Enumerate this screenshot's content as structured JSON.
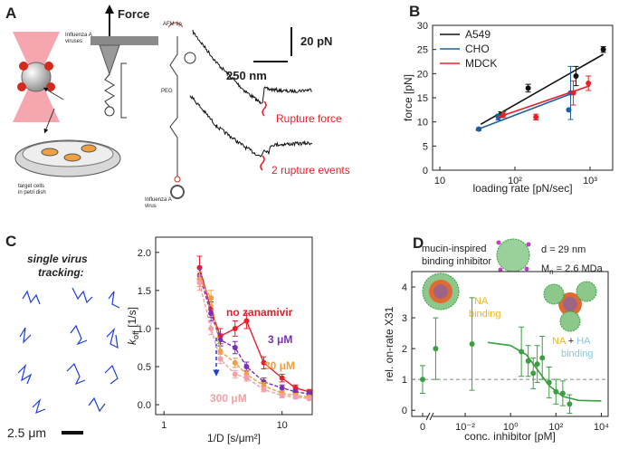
{
  "panels": {
    "A": {
      "letter": "A",
      "force": "Force",
      "afm_tip": "AFM tip",
      "viruses": [
        "Influenza A",
        "viruses"
      ],
      "cells": [
        "target cells",
        "in petri dish"
      ],
      "virus": [
        "Influenza A",
        "virus"
      ],
      "peg": "PEG",
      "force_scale": "20 pN",
      "distance_scale": "250 nm",
      "rupture_force": "Rupture force",
      "rupture_events": "2 rupture events"
    },
    "B": {
      "letter": "B"
    },
    "C": {
      "letter": "C",
      "tracking": [
        "single virus",
        "tracking:"
      ],
      "scale_bar": "2.5 μm"
    },
    "D": {
      "letter": "D",
      "inhibitor": [
        "mucin-inspired",
        "binding inhibitor"
      ],
      "diameter": "d = 29 nm",
      "mass": {
        "symbol": "M",
        "subscript": "n",
        "text": " = 2.6 MDa"
      },
      "na_binding": [
        "NA",
        "binding"
      ],
      "na_ha_binding": {
        "na": "NA",
        "plus": "+",
        "ha": "HA",
        "binding": "binding"
      }
    }
  },
  "chart_data": [
    {
      "type": "scatter",
      "x_label": "loading rate [pN/sec]",
      "y_label": "force [pN]",
      "xlog": true,
      "xlim": [
        8,
        2000
      ],
      "xticks": [
        10,
        {
          "value": 100,
          "label": "10²"
        },
        {
          "value": 1000,
          "label": "10³"
        }
      ],
      "ylim": [
        0,
        30
      ],
      "yticks": [
        0,
        5,
        10,
        15,
        20,
        25,
        30
      ],
      "legend": "upper left",
      "series": [
        {
          "name": "A549",
          "color": "#111111",
          "x": [
            65,
            150,
            650,
            1500
          ],
          "values": [
            11.5,
            17,
            19.5,
            25
          ],
          "errors": [
            0.6,
            0.8,
            2,
            0.6
          ],
          "fit": {
            "x": [
              35,
              1500
            ],
            "values": [
              9.5,
              24
            ]
          }
        },
        {
          "name": "CHO",
          "color": "#1f5fa0",
          "x": [
            33,
            60,
            550,
            520
          ],
          "values": [
            8.5,
            11,
            16,
            12.5
          ],
          "errors": [
            0.3,
            0.6,
            5.5,
            0
          ],
          "fit": {
            "x": [
              30,
              600
            ],
            "values": [
              8.3,
              16
            ]
          }
        },
        {
          "name": "MDCK",
          "color": "#e8202a",
          "x": [
            70,
            190,
            600,
            950
          ],
          "values": [
            11.5,
            11,
            16,
            18
          ],
          "errors": [
            0.6,
            0.6,
            2.5,
            1.5
          ],
          "fit": {
            "x": [
              60,
              1000
            ],
            "values": [
              11,
              17.5
            ]
          }
        }
      ]
    },
    {
      "type": "line",
      "x_label": "1/D [s/μm²]",
      "y_label": {
        "symbol": "k",
        "subscript": "off",
        "text": " [1/s]"
      },
      "xlog": true,
      "xlim": [
        0.85,
        18
      ],
      "xticks": [
        1,
        10
      ],
      "ylim": [
        -0.13,
        2.2
      ],
      "yticks": [
        {
          "value": 0,
          "label": "0.0"
        },
        0.5,
        {
          "value": 1,
          "label": "1.0"
        },
        1.5,
        {
          "value": 2,
          "label": "2.0"
        }
      ],
      "series": [
        {
          "name": "no zanamivir",
          "color": "#e8202a",
          "dashed": false,
          "x": [
            2,
            2.5,
            3,
            4,
            5,
            7,
            10,
            13,
            17
          ],
          "values": [
            1.8,
            1.25,
            0.9,
            1.0,
            1.1,
            0.55,
            0.35,
            0.22,
            0.17
          ],
          "errors": [
            0.15,
            0.1,
            0.1,
            0.1,
            0.1,
            0.08,
            0.05,
            0.04,
            0.03
          ]
        },
        {
          "name": "3 μM",
          "color": "#7b2fbe",
          "dashed": true,
          "x": [
            2,
            2.5,
            3,
            4,
            5,
            7,
            10,
            13,
            17
          ],
          "values": [
            1.7,
            1.2,
            0.85,
            0.75,
            0.5,
            0.3,
            0.22,
            0.17,
            0.14
          ],
          "errors": [
            0.1,
            0.1,
            0.08,
            0.08,
            0.06,
            0.05,
            0.04,
            0.03,
            0.03
          ]
        },
        {
          "name": "30 μM",
          "color": "#f0a040",
          "dashed": true,
          "x": [
            2,
            2.5,
            3,
            4,
            5,
            7,
            10,
            13,
            17
          ],
          "values": [
            1.65,
            1.4,
            0.7,
            0.55,
            0.4,
            0.25,
            0.15,
            0.12,
            0.1
          ],
          "errors": [
            0.1,
            0.1,
            0.08,
            0.06,
            0.05,
            0.04,
            0.03,
            0.03,
            0.02
          ]
        },
        {
          "name": "300 μM",
          "color": "#f4a0a8",
          "dashed": true,
          "x": [
            2,
            2.5,
            3,
            4,
            5,
            7,
            10,
            13,
            17
          ],
          "values": [
            1.6,
            1.0,
            0.6,
            0.4,
            0.35,
            0.2,
            0.12,
            0.1,
            0.08
          ],
          "errors": [
            0.1,
            0.08,
            0.06,
            0.05,
            0.04,
            0.03,
            0.03,
            0.02,
            0.02
          ]
        }
      ]
    },
    {
      "type": "scatter",
      "x_label": "conc. inhibitor [pM]",
      "y_label": "rel. on-rate X31",
      "xlog": true,
      "axis_break": true,
      "xlim": [
        0.0004,
        20000
      ],
      "xticks": [
        0,
        {
          "value": 0.01,
          "label": "10⁻²"
        },
        {
          "value": 1,
          "label": "10⁰"
        },
        {
          "value": 100,
          "label": "10²"
        },
        {
          "value": 10000,
          "label": "10⁴"
        }
      ],
      "ylim": [
        -0.2,
        4.5
      ],
      "yticks": [
        0,
        1,
        2,
        3,
        4
      ],
      "reference": 1,
      "series": [
        {
          "color": "#3aa040",
          "x": [
            0,
            0.0005,
            0.02,
            3,
            6,
            10,
            15,
            25,
            50,
            100,
            200,
            400
          ],
          "values": [
            1,
            2.0,
            2.15,
            1.9,
            1.6,
            1.2,
            1.5,
            1.7,
            0.9,
            0.6,
            0.55,
            0.2
          ],
          "errors": [
            0.45,
            1.0,
            1.5,
            0.8,
            0.5,
            0.5,
            0.6,
            0.7,
            0.5,
            0.4,
            0.4,
            0.3
          ],
          "fit": {
            "x": [
              0.1,
              1,
              5,
              20,
              50,
              200,
              1000,
              10000
            ],
            "values": [
              2.2,
              2.1,
              1.8,
              1.2,
              0.8,
              0.45,
              0.32,
              0.3
            ]
          }
        }
      ]
    }
  ]
}
